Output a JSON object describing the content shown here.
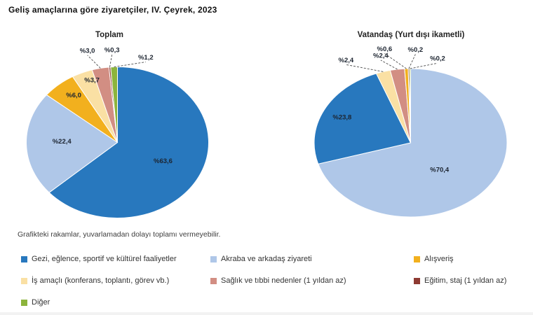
{
  "header": {
    "title": "Geliş amaçlarına göre ziyaretçiler, IV. Çeyrek, 2023"
  },
  "footnote": "Grafikteki rakamlar, yuvarlamadan dolayı toplamı vermeyebilir.",
  "colors": {
    "gezi": "#2878BE",
    "akraba": "#AFC7E8",
    "alisveris": "#F2B01E",
    "is_amacli": "#FAE0A4",
    "saglik": "#D28E83",
    "egitim": "#8E3A32",
    "diger": "#8CB43C"
  },
  "chart_data": [
    {
      "type": "pie",
      "title": "Toplam",
      "unit": "percent",
      "legend_position": "bottom",
      "slices": [
        {
          "name": "Gezi, eğlence, sportif ve kültürel faaliyetler",
          "value": 63.6,
          "label": "%63,6",
          "color": "#2878BE",
          "label_mode": "in",
          "label_xy": [
            0.5,
            0.25
          ]
        },
        {
          "name": "Akraba ve arkadaş ziyareti",
          "value": 22.4,
          "label": "%22,4",
          "color": "#AFC7E8",
          "label_mode": "in",
          "label_xy": [
            -0.61,
            -0.01
          ]
        },
        {
          "name": "Alışveriş",
          "value": 6.0,
          "label": "%6,0",
          "color": "#F2B01E",
          "label_mode": "in",
          "label_xy": [
            -0.48,
            -0.62
          ]
        },
        {
          "name": "İş amaçlı (konferans, toplantı, görev vb.)",
          "value": 3.7,
          "label": "%3,7",
          "color": "#FAE0A4",
          "label_mode": "in",
          "label_xy": [
            -0.28,
            -0.82
          ]
        },
        {
          "name": "Sağlık ve tıbbi nedenler (1 yıldan az)",
          "value": 3.0,
          "label": "%3,0",
          "color": "#D28E83",
          "label_mode": "out",
          "label_xy": [
            -0.33,
            -1.21
          ]
        },
        {
          "name": "Eğitim, staj (1 yıldan az)",
          "value": 0.3,
          "label": "%0,3",
          "color": "#8E3A32",
          "label_mode": "out",
          "label_xy": [
            -0.06,
            -1.22
          ]
        },
        {
          "name": "Diğer",
          "value": 1.2,
          "label": "%1,2",
          "color": "#8CB43C",
          "label_mode": "out",
          "label_xy": [
            0.31,
            -1.12
          ]
        }
      ]
    },
    {
      "type": "pie",
      "title": "Vatandaş (Yurt dışı ikametli)",
      "unit": "percent",
      "legend_position": "bottom",
      "slices": [
        {
          "name": "Akraba ve arkadaş ziyareti",
          "value": 70.4,
          "label": "%70,4",
          "color": "#AFC7E8",
          "label_mode": "in",
          "label_xy": [
            0.3,
            0.37
          ]
        },
        {
          "name": "Gezi, eğlence, sportif ve kültürel faaliyetler",
          "value": 23.8,
          "label": "%23,8",
          "color": "#2878BE",
          "label_mode": "in",
          "label_xy": [
            -0.71,
            -0.34
          ]
        },
        {
          "name": "İş amaçlı (konferans, toplantı, görev vb.)",
          "value": 2.4,
          "label": "%2,4",
          "color": "#FAE0A4",
          "label_mode": "out",
          "label_xy": [
            -0.67,
            -1.11
          ]
        },
        {
          "name": "Sağlık ve tıbbi nedenler (1 yıldan az)",
          "value": 2.4,
          "label": "%2,4",
          "color": "#D28E83",
          "label_mode": "out",
          "label_xy": [
            -0.31,
            -1.17
          ]
        },
        {
          "name": "Alışveriş",
          "value": 0.6,
          "label": "%0,6",
          "color": "#F2B01E",
          "label_mode": "out",
          "label_xy": [
            -0.27,
            -1.26
          ]
        },
        {
          "name": "Eğitim, staj (1 yıldan az)",
          "value": 0.2,
          "label": "%0,2",
          "color": "#8E3A32",
          "label_mode": "out",
          "label_xy": [
            0.05,
            -1.25
          ]
        },
        {
          "name": "Diğer",
          "value": 0.2,
          "label": "%0,2",
          "color": "#8CB43C",
          "label_mode": "out",
          "label_xy": [
            0.28,
            -1.13
          ]
        }
      ]
    }
  ],
  "legend": {
    "items": [
      {
        "label": "Gezi, eğlence, sportif ve kültürel faaliyetler",
        "color": "#2878BE"
      },
      {
        "label": "Akraba ve arkadaş ziyareti",
        "color": "#AFC7E8"
      },
      {
        "label": "Alışveriş",
        "color": "#F2B01E"
      },
      {
        "label": "İş amaçlı (konferans, toplantı, görev vb.)",
        "color": "#FAE0A4"
      },
      {
        "label": "Sağlık ve tıbbi nedenler (1 yıldan az)",
        "color": "#D28E83"
      },
      {
        "label": "Eğitim, staj (1 yıldan az)",
        "color": "#8E3A32"
      },
      {
        "label": "Diğer",
        "color": "#8CB43C"
      }
    ]
  }
}
